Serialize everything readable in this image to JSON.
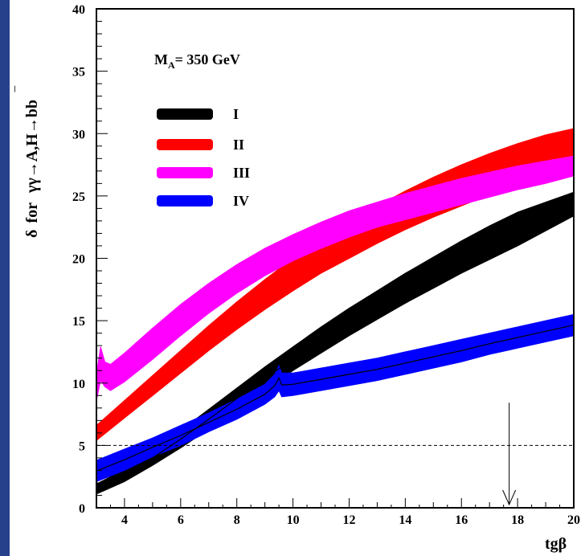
{
  "chart_data": {
    "type": "area",
    "annotation": {
      "text": "M",
      "sub": "A",
      "rest": "= 350 GeV"
    },
    "ylabel": {
      "delta": "δ",
      "for": "for",
      "process": "γγ→A,H→bb",
      "bar": "‾"
    },
    "xlabel": "tgβ",
    "xlim": [
      3,
      20
    ],
    "ylim": [
      0,
      40
    ],
    "xticks": [
      "4",
      "6",
      "8",
      "10",
      "12",
      "14",
      "16",
      "18",
      "20"
    ],
    "yticks": [
      "0",
      "5",
      "10",
      "15",
      "20",
      "25",
      "30",
      "35",
      "40"
    ],
    "reference_line": {
      "y": 5,
      "style": "dashed"
    },
    "arrow": {
      "x": 17.7,
      "from_y": 2.5,
      "to_y": 0
    },
    "legend": {
      "placement": "upper-left"
    },
    "colors": {
      "I": "#000000",
      "II": "#ff0000",
      "III": "#ff00ff",
      "IV": "#0000ff",
      "sidebar": "#27408b"
    },
    "series": [
      {
        "name": "I",
        "x": [
          3,
          4,
          5,
          6,
          7,
          8,
          9,
          10,
          11,
          12,
          13,
          14,
          15,
          16,
          17,
          18,
          19,
          20
        ],
        "lower": [
          1.1,
          2.1,
          3.4,
          4.8,
          6.3,
          7.9,
          9.4,
          11.0,
          12.4,
          13.8,
          15.1,
          16.4,
          17.6,
          18.8,
          19.9,
          21.0,
          22.2,
          23.4
        ],
        "upper": [
          1.9,
          3.1,
          4.6,
          6.2,
          7.9,
          9.6,
          11.3,
          12.9,
          14.5,
          16.0,
          17.4,
          18.8,
          20.1,
          21.4,
          22.6,
          23.7,
          24.5,
          25.3
        ]
      },
      {
        "name": "II",
        "x": [
          3,
          4,
          5,
          6,
          7,
          8,
          9,
          10,
          11,
          12,
          13,
          14,
          15,
          16,
          17,
          18,
          19,
          20
        ],
        "lower": [
          5.4,
          7.2,
          9.0,
          10.8,
          12.6,
          14.3,
          15.9,
          17.4,
          18.8,
          20.0,
          21.2,
          22.3,
          23.3,
          24.2,
          25.1,
          25.9,
          26.7,
          27.5
        ],
        "upper": [
          6.6,
          8.6,
          10.6,
          12.6,
          14.6,
          16.5,
          18.3,
          20.0,
          21.5,
          22.9,
          24.2,
          25.4,
          26.5,
          27.5,
          28.4,
          29.2,
          29.9,
          30.4
        ]
      },
      {
        "name": "III",
        "x": [
          3,
          3.15,
          3.3,
          3.5,
          4,
          5,
          6,
          7,
          8,
          9,
          10,
          11,
          12,
          13,
          14,
          15,
          16,
          17,
          18,
          19,
          20
        ],
        "lower": [
          8.6,
          10.2,
          9.7,
          9.4,
          10.1,
          11.9,
          13.8,
          15.6,
          17.2,
          18.6,
          19.8,
          20.8,
          21.7,
          22.5,
          23.1,
          23.7,
          24.3,
          24.9,
          25.5,
          26.0,
          26.6
        ],
        "upper": [
          10.7,
          12.9,
          11.7,
          11.5,
          12.4,
          14.4,
          16.3,
          18.0,
          19.5,
          20.8,
          21.9,
          22.9,
          23.8,
          24.5,
          25.2,
          25.8,
          26.4,
          26.9,
          27.4,
          27.8,
          28.2
        ]
      },
      {
        "name": "IV",
        "x": [
          3,
          4,
          5,
          6,
          7,
          8,
          9,
          9.35,
          9.5,
          9.6,
          10,
          11,
          12,
          13,
          14,
          15,
          16,
          17,
          18,
          19,
          20
        ],
        "lower": [
          2.1,
          3.0,
          4.1,
          5.0,
          6.1,
          7.1,
          8.3,
          8.9,
          9.4,
          8.9,
          9.0,
          9.4,
          9.8,
          10.2,
          10.7,
          11.2,
          11.7,
          12.3,
          12.8,
          13.3,
          13.8
        ],
        "upper": [
          3.8,
          4.7,
          5.6,
          6.6,
          7.6,
          8.7,
          9.9,
          10.7,
          11.4,
          10.8,
          10.8,
          11.2,
          11.6,
          12.0,
          12.5,
          13.0,
          13.5,
          14.0,
          14.5,
          15.0,
          15.5
        ]
      }
    ]
  }
}
